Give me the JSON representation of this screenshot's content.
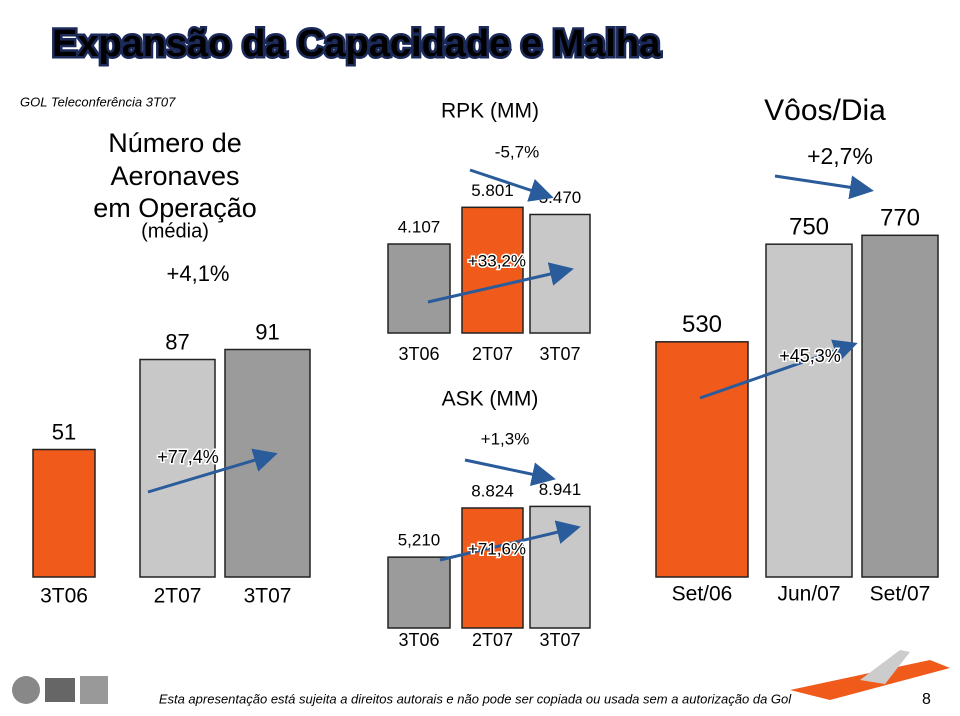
{
  "header": {
    "title": "Expansão da Capacidade e Malha",
    "subtitle": "GOL Teleconferência 3T07"
  },
  "chart_data": [
    {
      "type": "bar",
      "title": [
        "Número de",
        "Aeronaves",
        "em Operação"
      ],
      "subtitle": "(média)",
      "categories": [
        "3T06",
        "2T07",
        "3T07"
      ],
      "values": [
        51,
        87,
        91
      ],
      "colors": [
        "#f05a1a",
        "#c8c8c8",
        "#9b9b9b"
      ],
      "ylim": [
        0,
        100
      ],
      "annotations": [
        "+4,1%",
        "+77,4%"
      ]
    },
    {
      "type": "bar",
      "title": "RPK (MM)",
      "categories": [
        "3T06",
        "2T07",
        "3T07"
      ],
      "values": [
        4107,
        5801,
        5470
      ],
      "value_labels": [
        "4.107",
        "5.801",
        "5.470"
      ],
      "colors": [
        "#9b9b9b",
        "#f05a1a",
        "#c8c8c8"
      ],
      "ylim": [
        0,
        6000
      ],
      "annotations": [
        "-5,7%",
        "+33,2%"
      ]
    },
    {
      "type": "bar",
      "title": "ASK (MM)",
      "categories": [
        "3T06",
        "2T07",
        "3T07"
      ],
      "values": [
        5210,
        8824,
        8941
      ],
      "value_labels": [
        "5,210",
        "8.824",
        "8.941"
      ],
      "colors": [
        "#9b9b9b",
        "#f05a1a",
        "#c8c8c8"
      ],
      "ylim": [
        0,
        10000
      ],
      "annotations": [
        "+1,3%",
        "+71,6%"
      ]
    },
    {
      "type": "bar",
      "title": "Vôos/Dia",
      "categories": [
        "Set/06",
        "Jun/07",
        "Set/07"
      ],
      "values": [
        530,
        750,
        770
      ],
      "colors": [
        "#f05a1a",
        "#c8c8c8",
        "#9b9b9b"
      ],
      "ylim": [
        0,
        800
      ],
      "annotations": [
        "+2,7%",
        "+45,3%"
      ]
    }
  ],
  "footer": {
    "disclaimer": "Esta apresentação está sujeita a direitos autorais e não pode ser copiada ou usada sem a autorização da Gol",
    "page": "8"
  }
}
